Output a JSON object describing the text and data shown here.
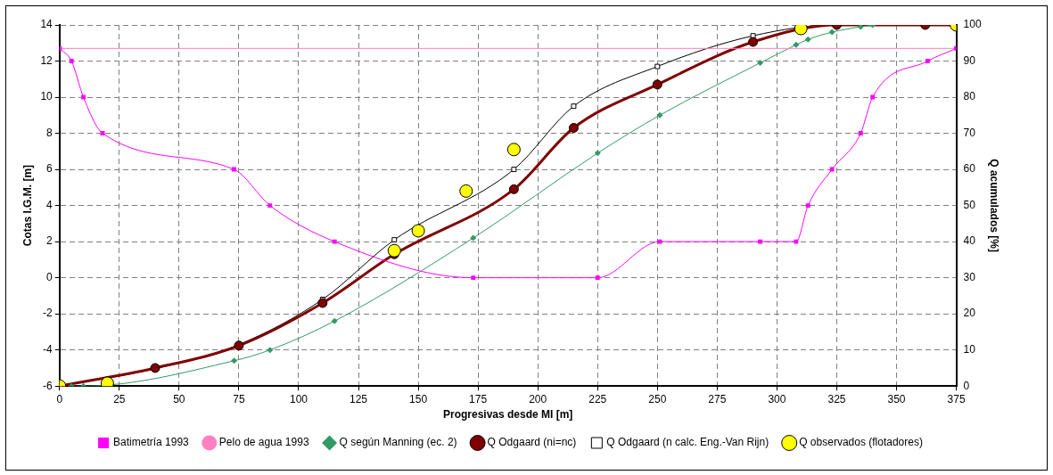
{
  "chart_data": {
    "type": "line",
    "xlabel": "Progresivas desde MI [m]",
    "ylabel": "Cotas I.G.M. [m]",
    "y2label": "Q acumulados [%]",
    "xlim": [
      0,
      375
    ],
    "xticks": [
      0,
      25,
      50,
      75,
      100,
      125,
      150,
      175,
      200,
      225,
      250,
      275,
      300,
      325,
      350,
      375
    ],
    "ylim": [
      -6,
      14
    ],
    "yticks": [
      -6,
      -4,
      -2,
      0,
      2,
      4,
      6,
      8,
      10,
      12,
      14
    ],
    "y2lim": [
      0,
      100
    ],
    "y2ticks": [
      0,
      10,
      20,
      30,
      40,
      50,
      60,
      70,
      80,
      90,
      100
    ],
    "grid": true,
    "legend": "bottom",
    "series": [
      {
        "name": "Batimetría 1993",
        "color": "#ff00ff",
        "marker": "square",
        "x": [
          0,
          5,
          10,
          18,
          73,
          88,
          115,
          173,
          225,
          251,
          293,
          308,
          313,
          323,
          335,
          340,
          363,
          375
        ],
        "values": [
          12.7,
          12,
          10,
          8,
          6,
          4,
          2,
          0,
          0,
          2,
          2,
          2,
          4,
          6,
          8,
          10,
          12,
          12.7
        ]
      },
      {
        "name": "Pelo de agua 1993",
        "color": "#ff80c0",
        "marker": "none",
        "x": [
          0,
          375
        ],
        "values": [
          12.7,
          12.7
        ]
      },
      {
        "name": "Q según Manning (ec. 2)",
        "color": "#339966",
        "marker": "diamond",
        "axis": "y2",
        "x": [
          5,
          10,
          73,
          88,
          115,
          173,
          225,
          251,
          293,
          308,
          313,
          323,
          335,
          340
        ],
        "values": [
          0,
          0,
          7,
          10,
          18,
          41,
          64.5,
          75,
          89.5,
          94.5,
          96,
          98,
          99.5,
          100
        ]
      },
      {
        "name": "Q Odgaard (ni=nc)",
        "color": "#800000",
        "marker": "circle",
        "axis": "y2",
        "x": [
          0,
          40,
          75,
          110,
          140,
          190,
          215,
          250,
          290,
          325,
          362,
          375
        ],
        "values": [
          0,
          5,
          11.2,
          23,
          36.5,
          54.5,
          71.5,
          83.5,
          95.3,
          100,
          100,
          100
        ]
      },
      {
        "name": "Q Odgaard (n calc. Eng.-Van Rijn)",
        "color": "#000000",
        "marker": "square",
        "axis": "y2",
        "x": [
          0,
          40,
          75,
          110,
          140,
          190,
          215,
          250,
          290,
          325,
          362
        ],
        "values": [
          0,
          4.8,
          11.5,
          24,
          40.5,
          60,
          77.5,
          88.5,
          97,
          100,
          100
        ]
      },
      {
        "name": "Q observados (flotadores)",
        "type": "scatter",
        "color": "#ffff00",
        "marker": "circle",
        "axis": "y2",
        "x": [
          0,
          20,
          140,
          150,
          170,
          190,
          310,
          375
        ],
        "values": [
          0,
          0.8,
          37.5,
          43,
          54,
          65.5,
          99,
          100
        ]
      }
    ]
  }
}
